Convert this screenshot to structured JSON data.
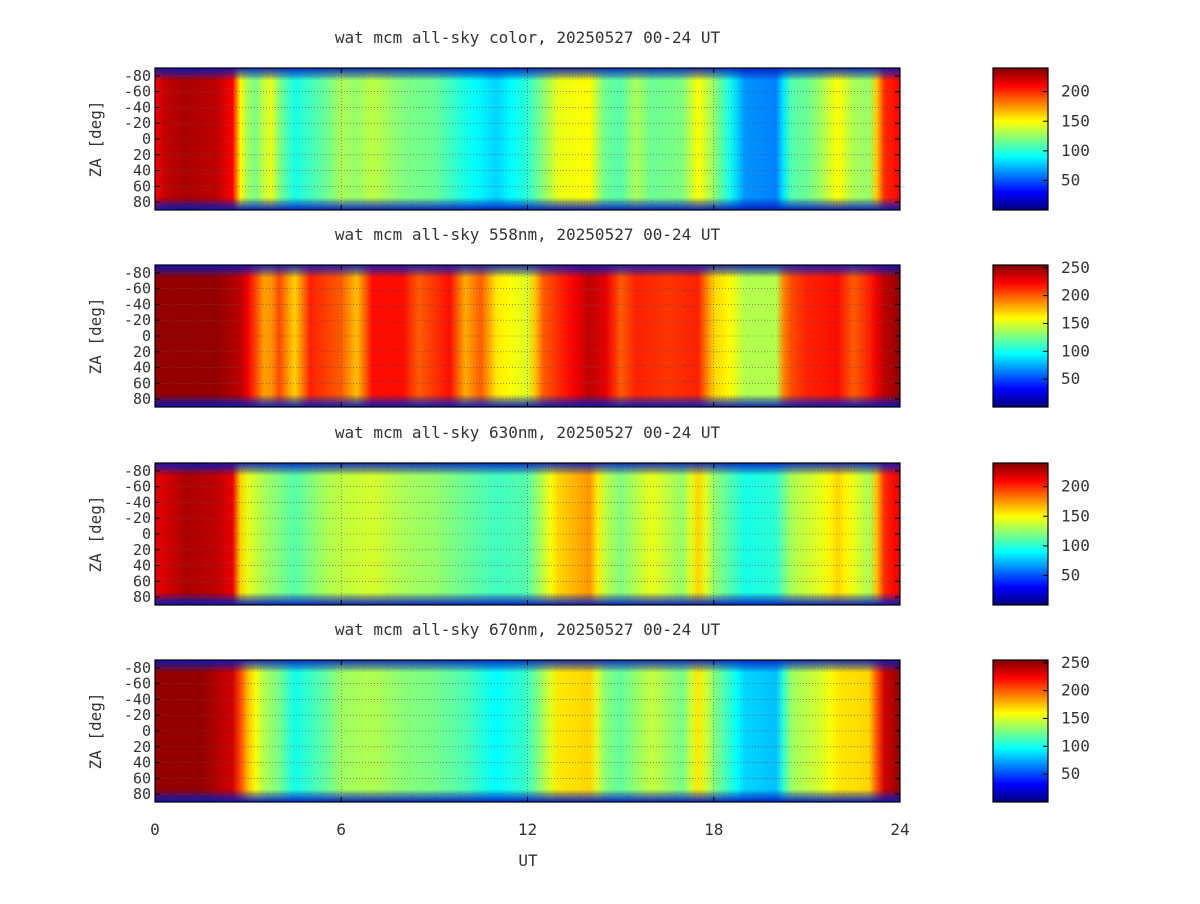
{
  "colors": {
    "axis": "#000000",
    "grid": "#555555",
    "text": "#333333",
    "colormap": [
      "#00007f",
      "#0000ff",
      "#007fff",
      "#00ffff",
      "#7fff7f",
      "#ffff00",
      "#ff7f00",
      "#ff0000",
      "#7f0000"
    ]
  },
  "shared_x_axis": {
    "label": "UT",
    "ticks": [
      0,
      6,
      12,
      18,
      24
    ],
    "tick_labels": [
      "0",
      "6",
      "12",
      "18",
      "24"
    ],
    "range": [
      0,
      24
    ]
  },
  "chart_data": [
    {
      "type": "heatmap",
      "title": "wat mcm all-sky color, 20250527 00-24 UT",
      "ylabel": "ZA [deg]",
      "ylim": [
        -90,
        90
      ],
      "y_ticks": [
        -80,
        -60,
        -40,
        -20,
        0,
        20,
        40,
        60,
        80
      ],
      "y_tick_labels": [
        "-80",
        "-60",
        "-40",
        "-20",
        "0",
        "20",
        "40",
        "60",
        "80"
      ],
      "colorbar": {
        "range": [
          0,
          240
        ],
        "ticks": [
          50,
          100,
          150,
          200
        ],
        "tick_labels": [
          "50",
          "100",
          "150",
          "200"
        ]
      },
      "grid": true,
      "profile": [
        [
          0.0,
          210
        ],
        [
          0.3,
          225
        ],
        [
          1.0,
          230
        ],
        [
          2.0,
          225
        ],
        [
          2.5,
          210
        ],
        [
          2.8,
          140
        ],
        [
          3.2,
          115
        ],
        [
          3.7,
          150
        ],
        [
          4.0,
          120
        ],
        [
          4.5,
          95
        ],
        [
          5.5,
          115
        ],
        [
          6.0,
          130
        ],
        [
          6.5,
          125
        ],
        [
          7.0,
          135
        ],
        [
          8.0,
          120
        ],
        [
          9.0,
          115
        ],
        [
          10.0,
          95
        ],
        [
          11.0,
          80
        ],
        [
          12.0,
          100
        ],
        [
          13.0,
          145
        ],
        [
          14.0,
          150
        ],
        [
          14.5,
          115
        ],
        [
          15.0,
          110
        ],
        [
          15.5,
          130
        ],
        [
          16.0,
          115
        ],
        [
          17.0,
          120
        ],
        [
          17.5,
          150
        ],
        [
          18.0,
          125
        ],
        [
          18.5,
          95
        ],
        [
          19.0,
          65
        ],
        [
          20.0,
          60
        ],
        [
          20.5,
          110
        ],
        [
          21.0,
          115
        ],
        [
          21.5,
          130
        ],
        [
          22.0,
          150
        ],
        [
          22.5,
          130
        ],
        [
          23.0,
          125
        ],
        [
          23.5,
          200
        ],
        [
          24.0,
          210
        ]
      ]
    },
    {
      "type": "heatmap",
      "title": "wat mcm all-sky 558nm, 20250527 00-24 UT",
      "ylabel": "ZA [deg]",
      "ylim": [
        -90,
        90
      ],
      "y_ticks": [
        -80,
        -60,
        -40,
        -20,
        0,
        20,
        40,
        60,
        80
      ],
      "y_tick_labels": [
        "-80",
        "-60",
        "-40",
        "-20",
        "0",
        "20",
        "40",
        "60",
        "80"
      ],
      "colorbar": {
        "range": [
          0,
          255
        ],
        "ticks": [
          50,
          100,
          150,
          200,
          250
        ],
        "tick_labels": [
          "50",
          "100",
          "150",
          "200",
          "250"
        ]
      },
      "grid": true,
      "profile": [
        [
          0.0,
          250
        ],
        [
          2.0,
          250
        ],
        [
          2.8,
          240
        ],
        [
          3.2,
          210
        ],
        [
          3.6,
          175
        ],
        [
          4.0,
          205
        ],
        [
          4.5,
          170
        ],
        [
          5.0,
          215
        ],
        [
          6.0,
          200
        ],
        [
          6.5,
          175
        ],
        [
          7.0,
          220
        ],
        [
          8.0,
          220
        ],
        [
          8.5,
          200
        ],
        [
          9.5,
          220
        ],
        [
          10.0,
          180
        ],
        [
          10.5,
          200
        ],
        [
          11.0,
          165
        ],
        [
          12.0,
          150
        ],
        [
          12.5,
          200
        ],
        [
          13.5,
          225
        ],
        [
          14.0,
          240
        ],
        [
          14.5,
          230
        ],
        [
          15.0,
          200
        ],
        [
          15.5,
          215
        ],
        [
          16.5,
          210
        ],
        [
          17.5,
          215
        ],
        [
          18.0,
          170
        ],
        [
          18.5,
          160
        ],
        [
          19.0,
          140
        ],
        [
          20.0,
          140
        ],
        [
          20.3,
          200
        ],
        [
          21.0,
          215
        ],
        [
          22.0,
          220
        ],
        [
          22.5,
          200
        ],
        [
          23.0,
          215
        ],
        [
          23.5,
          240
        ],
        [
          24.0,
          250
        ]
      ]
    },
    {
      "type": "heatmap",
      "title": "wat mcm all-sky 630nm, 20250527 00-24 UT",
      "ylabel": "ZA [deg]",
      "ylim": [
        -90,
        90
      ],
      "y_ticks": [
        -80,
        -60,
        -40,
        -20,
        0,
        20,
        40,
        60,
        80
      ],
      "y_tick_labels": [
        "-80",
        "-60",
        "-40",
        "-20",
        "0",
        "20",
        "40",
        "60",
        "80"
      ],
      "colorbar": {
        "range": [
          0,
          240
        ],
        "ticks": [
          50,
          100,
          150,
          200
        ],
        "tick_labels": [
          "50",
          "100",
          "150",
          "200"
        ]
      },
      "grid": true,
      "profile": [
        [
          0.0,
          215
        ],
        [
          1.0,
          230
        ],
        [
          2.0,
          225
        ],
        [
          2.5,
          215
        ],
        [
          2.8,
          150
        ],
        [
          3.5,
          130
        ],
        [
          4.0,
          120
        ],
        [
          4.5,
          110
        ],
        [
          5.5,
          130
        ],
        [
          6.0,
          135
        ],
        [
          7.0,
          140
        ],
        [
          8.0,
          130
        ],
        [
          9.0,
          125
        ],
        [
          10.0,
          115
        ],
        [
          11.0,
          105
        ],
        [
          12.0,
          110
        ],
        [
          13.0,
          160
        ],
        [
          14.0,
          175
        ],
        [
          14.5,
          135
        ],
        [
          15.0,
          120
        ],
        [
          16.0,
          145
        ],
        [
          17.0,
          125
        ],
        [
          17.5,
          160
        ],
        [
          18.0,
          125
        ],
        [
          19.0,
          95
        ],
        [
          20.0,
          100
        ],
        [
          20.5,
          130
        ],
        [
          21.5,
          145
        ],
        [
          22.0,
          160
        ],
        [
          23.0,
          130
        ],
        [
          23.5,
          200
        ],
        [
          24.0,
          215
        ]
      ]
    },
    {
      "type": "heatmap",
      "title": "wat mcm all-sky 670nm, 20250527 00-24 UT",
      "ylabel": "ZA [deg]",
      "ylim": [
        -90,
        90
      ],
      "y_ticks": [
        -80,
        -60,
        -40,
        -20,
        0,
        20,
        40,
        60,
        80
      ],
      "y_tick_labels": [
        "-80",
        "-60",
        "-40",
        "-20",
        "0",
        "20",
        "40",
        "60",
        "80"
      ],
      "colorbar": {
        "range": [
          0,
          255
        ],
        "ticks": [
          50,
          100,
          150,
          200,
          250
        ],
        "tick_labels": [
          "50",
          "100",
          "150",
          "200",
          "250"
        ]
      },
      "grid": true,
      "profile": [
        [
          0.0,
          250
        ],
        [
          1.5,
          250
        ],
        [
          2.5,
          235
        ],
        [
          3.0,
          175
        ],
        [
          3.5,
          140
        ],
        [
          4.0,
          125
        ],
        [
          4.5,
          100
        ],
        [
          5.5,
          120
        ],
        [
          6.0,
          135
        ],
        [
          7.0,
          140
        ],
        [
          8.0,
          130
        ],
        [
          9.0,
          125
        ],
        [
          10.0,
          115
        ],
        [
          11.0,
          95
        ],
        [
          12.0,
          110
        ],
        [
          13.0,
          165
        ],
        [
          14.0,
          170
        ],
        [
          14.5,
          130
        ],
        [
          15.0,
          120
        ],
        [
          16.0,
          145
        ],
        [
          17.0,
          125
        ],
        [
          17.5,
          165
        ],
        [
          18.0,
          130
        ],
        [
          19.0,
          85
        ],
        [
          20.0,
          80
        ],
        [
          20.5,
          135
        ],
        [
          21.5,
          150
        ],
        [
          22.0,
          165
        ],
        [
          23.0,
          170
        ],
        [
          23.5,
          235
        ],
        [
          24.0,
          250
        ]
      ]
    }
  ]
}
